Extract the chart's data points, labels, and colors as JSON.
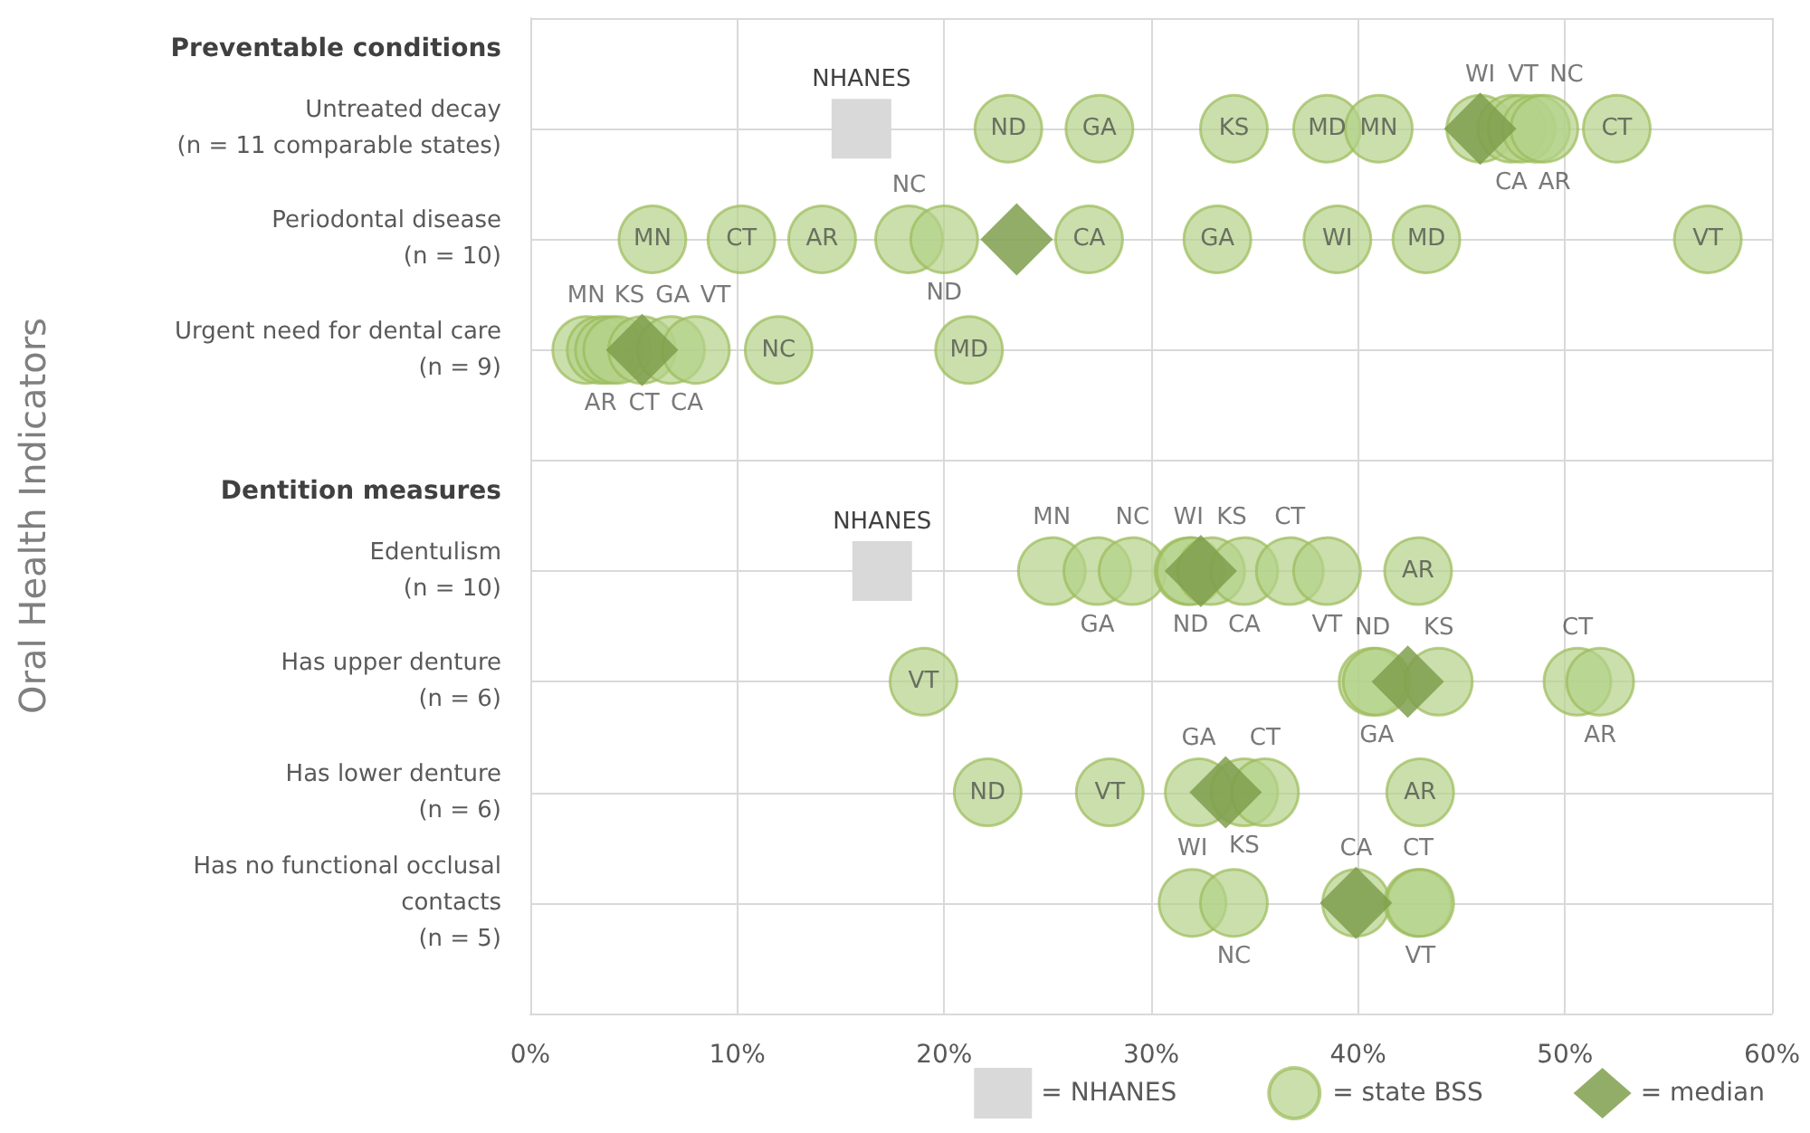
{
  "chart_data": {
    "type": "scatter",
    "orientation": "horizontal",
    "ylabel": "Oral Health Indicators",
    "categories": [
      "Preventable conditions",
      "Untreated decay\n(n = 11 comparable states)",
      "Periodontal disease\n(n = 10)",
      "Urgent need for dental care\n(n = 9)",
      "Dentition measures",
      "Edentulism\n(n = 10)",
      "Has upper denture\n(n = 6)",
      "Has lower denture\n(n = 6)",
      "Has no functional occlusal\ncontacts\n(n = 5)",
      null
    ],
    "xlim": [
      0,
      60
    ],
    "xticks": [
      {
        "value": 0,
        "label": "0%"
      },
      {
        "value": 10,
        "label": "10%"
      },
      {
        "value": 20,
        "label": "20%"
      },
      {
        "value": 30,
        "label": "30%"
      },
      {
        "value": 40,
        "label": "40%"
      },
      {
        "value": 50,
        "label": "50%"
      },
      {
        "value": 60,
        "label": "60%"
      }
    ],
    "grid": true,
    "legend": "bottom right",
    "series": [
      {
        "name": "= NHANES",
        "marker": "square",
        "color": "#d9d9d9",
        "x": [
          "Untreated decay\n(n = 11 comparable states)",
          "Edentulism\n(n = 10)"
        ],
        "values": [
          16.0,
          17.0
        ],
        "value_labels": [
          "NHANES",
          "NHANES"
        ]
      },
      {
        "name": "= state BSS",
        "marker": "circle",
        "color": "#b4d189",
        "x": [
          "Untreated decay\n(n = 11 comparable states)",
          "Untreated decay\n(n = 11 comparable states)",
          "Untreated decay\n(n = 11 comparable states)",
          "Untreated decay\n(n = 11 comparable states)",
          "Untreated decay\n(n = 11 comparable states)",
          "Untreated decay\n(n = 11 comparable states)",
          "Untreated decay\n(n = 11 comparable states)",
          "Untreated decay\n(n = 11 comparable states)",
          "Untreated decay\n(n = 11 comparable states)",
          "Untreated decay\n(n = 11 comparable states)",
          "Untreated decay\n(n = 11 comparable states)",
          "Periodontal disease\n(n = 10)",
          "Periodontal disease\n(n = 10)",
          "Periodontal disease\n(n = 10)",
          "Periodontal disease\n(n = 10)",
          "Periodontal disease\n(n = 10)",
          "Periodontal disease\n(n = 10)",
          "Periodontal disease\n(n = 10)",
          "Periodontal disease\n(n = 10)",
          "Periodontal disease\n(n = 10)",
          "Periodontal disease\n(n = 10)",
          "Urgent need for dental care\n(n = 9)",
          "Urgent need for dental care\n(n = 9)",
          "Urgent need for dental care\n(n = 9)",
          "Urgent need for dental care\n(n = 9)",
          "Urgent need for dental care\n(n = 9)",
          "Urgent need for dental care\n(n = 9)",
          "Urgent need for dental care\n(n = 9)",
          "Urgent need for dental care\n(n = 9)",
          "Urgent need for dental care\n(n = 9)",
          "Edentulism\n(n = 10)",
          "Edentulism\n(n = 10)",
          "Edentulism\n(n = 10)",
          "Edentulism\n(n = 10)",
          "Edentulism\n(n = 10)",
          "Edentulism\n(n = 10)",
          "Edentulism\n(n = 10)",
          "Edentulism\n(n = 10)",
          "Edentulism\n(n = 10)",
          "Edentulism\n(n = 10)",
          "Has upper denture\n(n = 6)",
          "Has upper denture\n(n = 6)",
          "Has upper denture\n(n = 6)",
          "Has upper denture\n(n = 6)",
          "Has upper denture\n(n = 6)",
          "Has upper denture\n(n = 6)",
          "Has lower denture\n(n = 6)",
          "Has lower denture\n(n = 6)",
          "Has lower denture\n(n = 6)",
          "Has lower denture\n(n = 6)",
          "Has lower denture\n(n = 6)",
          "Has lower denture\n(n = 6)",
          "Has no functional occlusal\ncontacts\n(n = 5)",
          "Has no functional occlusal\ncontacts\n(n = 5)",
          "Has no functional occlusal\ncontacts\n(n = 5)",
          "Has no functional occlusal\ncontacts\n(n = 5)",
          "Has no functional occlusal\ncontacts\n(n = 5)"
        ],
        "values": [
          23.1,
          27.5,
          34.0,
          38.5,
          41.0,
          45.9,
          47.4,
          47.9,
          48.6,
          49.0,
          52.5,
          5.9,
          10.2,
          14.1,
          18.3,
          20.0,
          27.0,
          33.2,
          39.0,
          43.3,
          56.9,
          2.7,
          3.4,
          3.8,
          4.2,
          5.4,
          6.8,
          8.0,
          12.0,
          21.2,
          25.2,
          27.4,
          29.1,
          31.8,
          31.9,
          32.9,
          34.5,
          36.7,
          38.5,
          42.9,
          19.0,
          40.7,
          40.9,
          43.9,
          50.6,
          51.7,
          22.1,
          28.0,
          32.3,
          34.5,
          35.5,
          43.0,
          32.0,
          34.0,
          39.9,
          42.9,
          43.0
        ],
        "value_labels": [
          "ND",
          "GA",
          "KS",
          "MD",
          "MN",
          "WI",
          "CA",
          "VT",
          "AR",
          "NC",
          "CT",
          "MN",
          "CT",
          "AR",
          "NC",
          "ND",
          "CA",
          "GA",
          "WI",
          "MD",
          "VT",
          "MN",
          "AR",
          "KS",
          "CT",
          "GA",
          "CA",
          "VT",
          "NC",
          "MD",
          "MN",
          "GA",
          "NC",
          "WI",
          "ND",
          "KS",
          "CA",
          "CT",
          "VT",
          "AR",
          "VT",
          "ND",
          "GA",
          "KS",
          "CT",
          "AR",
          "ND",
          "VT",
          "GA",
          "KS",
          "CT",
          "AR",
          "WI",
          "NC",
          "CA",
          "CT",
          "VT"
        ]
      },
      {
        "name": "= median",
        "marker": "diamond",
        "color": "#7f9f4c",
        "x": [
          "Untreated decay\n(n = 11 comparable states)",
          "Periodontal disease\n(n = 10)",
          "Urgent need for dental care\n(n = 9)",
          "Edentulism\n(n = 10)",
          "Has upper denture\n(n = 6)",
          "Has lower denture\n(n = 6)",
          "Has no functional occlusal\ncontacts\n(n = 5)"
        ],
        "values": [
          45.9,
          23.5,
          5.4,
          32.4,
          42.4,
          33.6,
          39.9
        ]
      }
    ]
  }
}
